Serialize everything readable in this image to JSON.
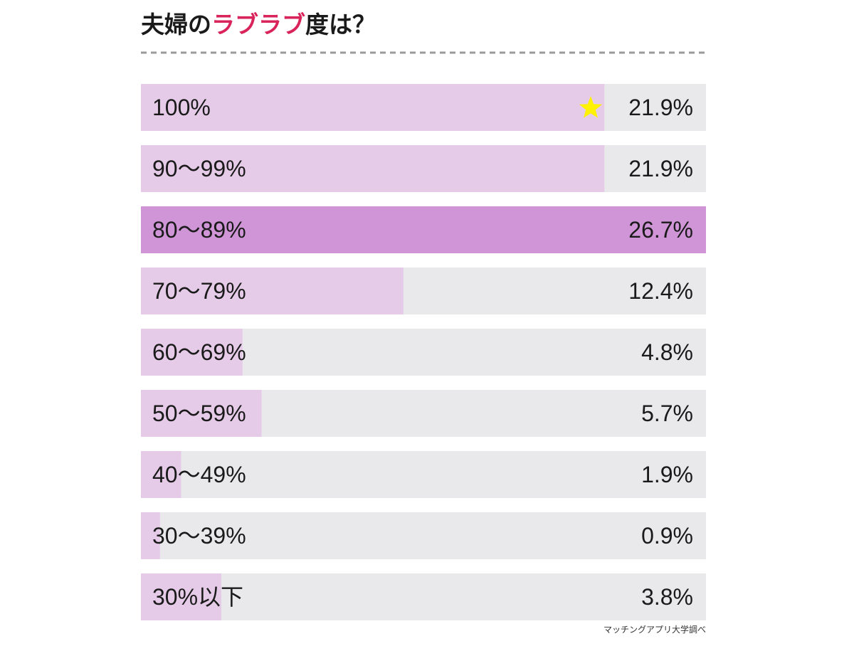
{
  "title": {
    "part1": "夫婦の",
    "accent": "ラブラブ",
    "part2": "度は？"
  },
  "source": "マッチングアプリ大学調べ",
  "colors": {
    "track": "#e9e9eb",
    "bar": "#e6cbe8",
    "bar_highlight": "#cf95d6",
    "accent": "#d9235b",
    "star": "#fff200",
    "divider": "#9a9a9a"
  },
  "marker": {
    "icon": "star-icon",
    "category": "100%"
  },
  "chart_data": {
    "type": "bar",
    "orientation": "horizontal",
    "title": "夫婦のラブラブ度は？",
    "categories": [
      "100%",
      "90〜99%",
      "80〜89%",
      "70〜79%",
      "60〜69%",
      "50〜59%",
      "40〜49%",
      "30〜39%",
      "30%以下"
    ],
    "values": [
      21.9,
      21.9,
      26.7,
      12.4,
      4.8,
      5.7,
      1.9,
      0.9,
      3.8
    ],
    "value_labels": [
      "21.9%",
      "21.9%",
      "26.7%",
      "12.4%",
      "4.8%",
      "5.7%",
      "1.9%",
      "0.9%",
      "3.8%"
    ],
    "highlight_category": "80〜89%",
    "xlim": [
      0,
      26.7
    ],
    "unit": "%",
    "grid": false,
    "legend": "none"
  }
}
